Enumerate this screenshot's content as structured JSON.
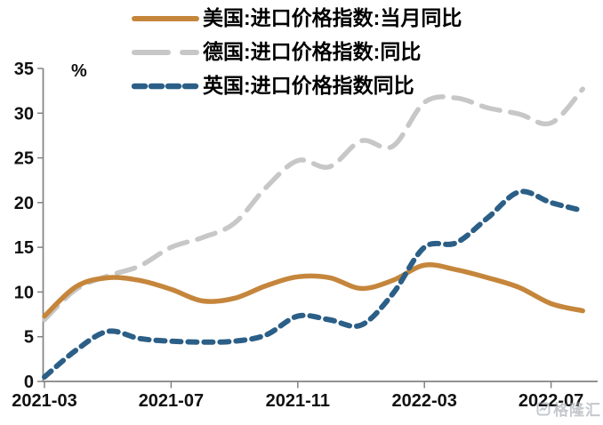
{
  "ylabel_unit": "%",
  "watermark": {
    "text": "格隆汇"
  },
  "chart_data": {
    "type": "line",
    "title": "",
    "xlabel": "",
    "ylabel": "%",
    "ylim": [
      0,
      35
    ],
    "ytick_step": 5,
    "grid": false,
    "legend_position": "top",
    "x": [
      "2021-03",
      "2021-04",
      "2021-05",
      "2021-06",
      "2021-07",
      "2021-08",
      "2021-09",
      "2021-10",
      "2021-11",
      "2021-12",
      "2022-01",
      "2022-02",
      "2022-03",
      "2022-04",
      "2022-05",
      "2022-06",
      "2022-07",
      "2022-08"
    ],
    "x_tick_labels": [
      "2021-03",
      "2021-07",
      "2021-11",
      "2022-03",
      "2022-07"
    ],
    "x_tick_indices": [
      0,
      4,
      8,
      12,
      16
    ],
    "series": [
      {
        "name": "美国:进口价格指数:当月同比",
        "color": "#C5863C",
        "style": "solid",
        "values": [
          7.3,
          10.6,
          11.6,
          11.3,
          10.3,
          9.0,
          9.3,
          10.7,
          11.7,
          11.6,
          10.4,
          11.3,
          13.0,
          12.5,
          11.6,
          10.5,
          8.7,
          7.9
        ]
      },
      {
        "name": "德国:进口价格指数:同比",
        "color": "#C7C7C7",
        "style": "long-dash",
        "values": [
          6.9,
          10.3,
          11.8,
          12.9,
          15.0,
          16.1,
          17.7,
          21.7,
          24.7,
          24.0,
          26.9,
          26.3,
          31.2,
          31.7,
          30.6,
          29.9,
          28.9,
          32.7
        ]
      },
      {
        "name": "英国:进口价格指数同比",
        "color": "#2B5F87",
        "style": "dash",
        "values": [
          0.5,
          3.5,
          5.6,
          4.8,
          4.5,
          4.4,
          4.5,
          5.2,
          7.3,
          6.9,
          6.3,
          9.8,
          15.0,
          15.5,
          18.3,
          21.2,
          20.0,
          19.1
        ]
      }
    ]
  }
}
